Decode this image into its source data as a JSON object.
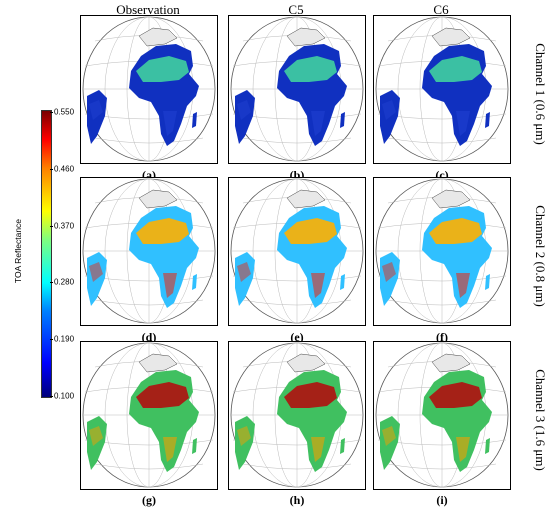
{
  "columns": [
    "Observation",
    "C5",
    "C6"
  ],
  "rows": [
    "Channel 1 (0.6 μm)",
    "Channel 2 (0.8 μm)",
    "Channel 3 (1.6 μm)"
  ],
  "panels": [
    {
      "caption": "(a)",
      "col": 0,
      "row": 0
    },
    {
      "caption": "(b)",
      "col": 1,
      "row": 0
    },
    {
      "caption": "(c)",
      "col": 2,
      "row": 0
    },
    {
      "caption": "(d)",
      "col": 0,
      "row": 1
    },
    {
      "caption": "(e)",
      "col": 1,
      "row": 1
    },
    {
      "caption": "(f)",
      "col": 2,
      "row": 1
    },
    {
      "caption": "(g)",
      "col": 0,
      "row": 2
    },
    {
      "caption": "(h)",
      "col": 1,
      "row": 2
    },
    {
      "caption": "(i)",
      "col": 2,
      "row": 2
    }
  ],
  "colorbar": {
    "title": "TOA Reflectance",
    "ticks": [
      "0.550",
      "0.460",
      "0.370",
      "0.280",
      "0.190",
      "0.100"
    ],
    "min": 0.1,
    "max": 0.55
  },
  "palette": {
    "channel1_land": "#1030c0",
    "channel1_sahara": "#40d0a0",
    "channel2_land": "#30c0ff",
    "channel2_sahara": "#ffb000",
    "channel3_land": "#40c060",
    "channel3_sahara": "#b01010"
  }
}
